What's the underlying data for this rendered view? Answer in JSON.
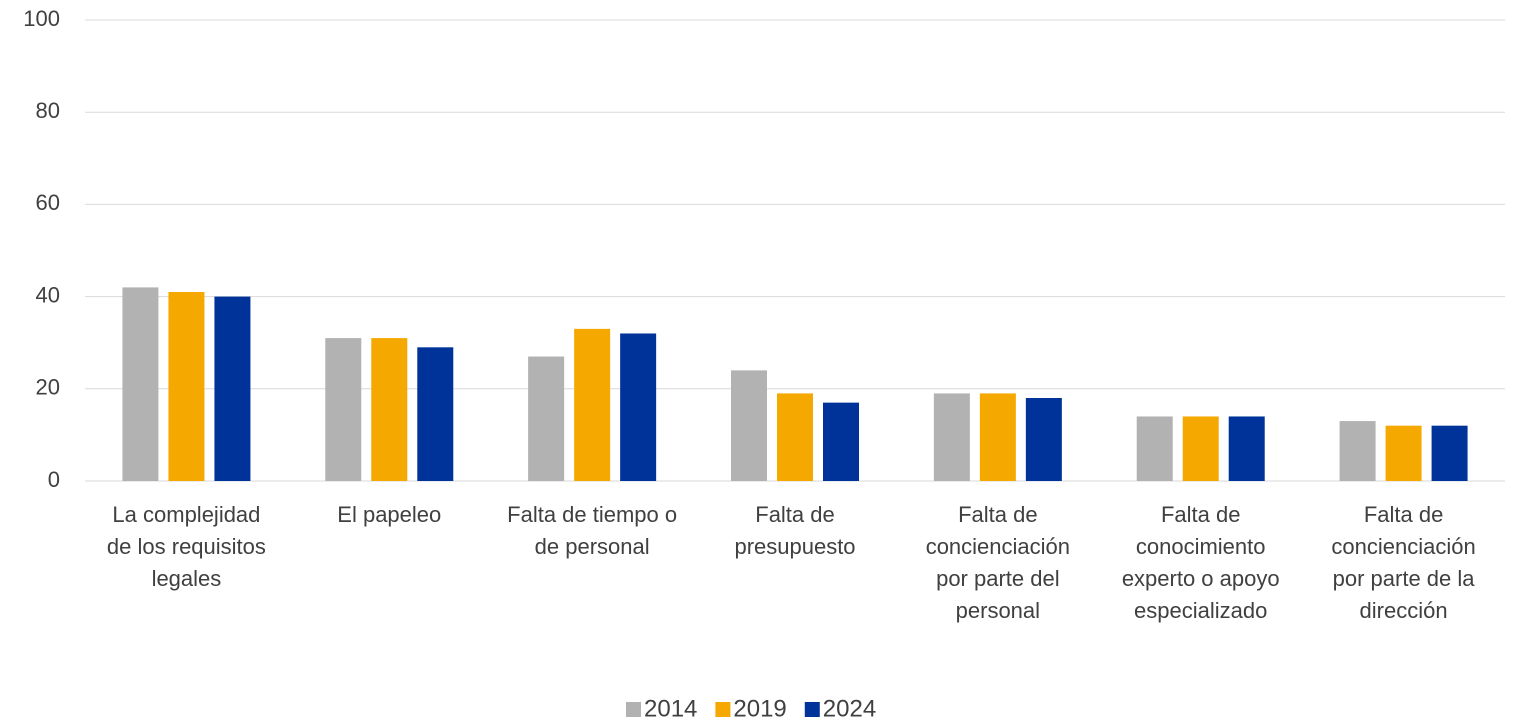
{
  "chart_data": {
    "type": "bar",
    "categories": [
      "La complejidad de los requisitos legales",
      "El papeleo",
      "Falta de tiempo o de personal",
      "Falta de presupuesto",
      "Falta de concienciación por parte del personal",
      "Falta de conocimiento experto o apoyo especializado",
      "Falta de concienciación por parte de la dirección"
    ],
    "series": [
      {
        "name": "2014",
        "color": "#b2b2b2",
        "values": [
          42,
          31,
          27,
          24,
          19,
          14,
          13
        ]
      },
      {
        "name": "2019",
        "color": "#f5a800",
        "values": [
          41,
          31,
          33,
          19,
          19,
          14,
          12
        ]
      },
      {
        "name": "2024",
        "color": "#003399",
        "values": [
          40,
          29,
          32,
          17,
          18,
          14,
          12
        ]
      }
    ],
    "ylim": [
      0,
      100
    ],
    "yticks": [
      0,
      20,
      40,
      60,
      80,
      100
    ],
    "grid": true,
    "legend": "bottom"
  }
}
